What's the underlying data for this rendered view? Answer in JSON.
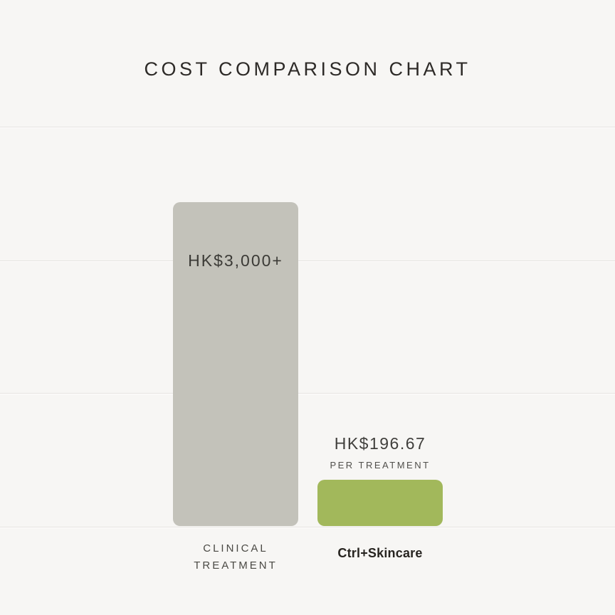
{
  "title": "COST COMPARISON CHART",
  "colors": {
    "background": "#f7f6f4",
    "gridline": "#e5e3e0",
    "bar_clinical": "#c3c2ba",
    "bar_skincare": "#a2b85b",
    "title_text": "#2d2a27",
    "label_text": "#4a4944"
  },
  "chart_data": {
    "type": "bar",
    "title": "COST COMPARISON CHART",
    "xlabel": "",
    "ylabel": "",
    "legend": "none",
    "gridlines": true,
    "gridline_count": 4,
    "currency": "HKD",
    "categories": [
      "CLINICAL TREATMENT",
      "Ctrl+Skincare"
    ],
    "values": [
      3000,
      196.67
    ],
    "bars": [
      {
        "category": "CLINICAL TREATMENT",
        "value": 3000,
        "value_label": "HK$3,000+",
        "value_label_position": "inside-top",
        "sublabel": "",
        "color": "#c3c2ba"
      },
      {
        "category": "Ctrl+Skincare",
        "value": 196.67,
        "value_label": "HK$196.67",
        "value_label_position": "above",
        "sublabel": "PER TREATMENT",
        "color": "#a2b85b"
      }
    ]
  }
}
